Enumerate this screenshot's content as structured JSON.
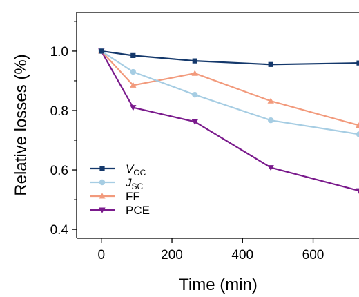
{
  "chart_data": {
    "type": "line",
    "xlabel": "Time (min)",
    "ylabel": "Relative losses (%)",
    "xlim": [
      -70,
      730
    ],
    "ylim": [
      0.37,
      1.13
    ],
    "xticks": [
      0,
      200,
      400,
      600
    ],
    "yticks": [
      0.4,
      0.6,
      0.8,
      1.0
    ],
    "xtick_labels": [
      "0",
      "200",
      "400",
      "600"
    ],
    "ytick_labels": [
      "0.4",
      "0.6",
      "0.8",
      "1.0"
    ],
    "grid": false,
    "legend_position": "lower-left",
    "series": [
      {
        "name": "V_OC",
        "label_main": "V",
        "label_sub": "OC",
        "label_italic": true,
        "color": "#14386b",
        "marker": "square",
        "x": [
          0,
          90,
          265,
          480,
          730
        ],
        "y": [
          1.0,
          0.985,
          0.967,
          0.955,
          0.96
        ]
      },
      {
        "name": "J_SC",
        "label_main": "J",
        "label_sub": "SC",
        "label_italic": true,
        "color": "#a6cde3",
        "marker": "circle",
        "x": [
          0,
          90,
          265,
          480,
          730
        ],
        "y": [
          1.0,
          0.93,
          0.853,
          0.767,
          0.72
        ]
      },
      {
        "name": "FF",
        "label_main": "FF",
        "label_sub": "",
        "label_italic": false,
        "color": "#f29a7c",
        "marker": "triangle-up",
        "x": [
          0,
          90,
          265,
          480,
          730
        ],
        "y": [
          1.0,
          0.885,
          0.925,
          0.832,
          0.75
        ]
      },
      {
        "name": "PCE",
        "label_main": "PCE",
        "label_sub": "",
        "label_italic": false,
        "color": "#7a1a8c",
        "marker": "triangle-down",
        "x": [
          0,
          90,
          265,
          480,
          730
        ],
        "y": [
          1.0,
          0.81,
          0.762,
          0.608,
          0.53
        ]
      }
    ]
  }
}
